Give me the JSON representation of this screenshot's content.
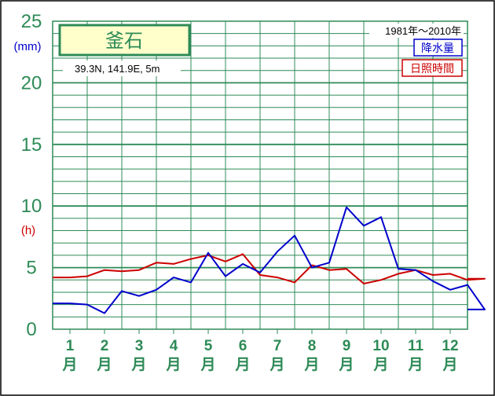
{
  "station": {
    "name": "釜石",
    "coords": "39.3N,  141.9E,  5m",
    "period": "1981年～2010年"
  },
  "legend": {
    "precip_label": "降水量",
    "sunshine_label": "日照時間"
  },
  "axes": {
    "y_unit_top": "(mm)",
    "y_unit_mid": "(h)",
    "y_ticks": [
      "25",
      "20",
      "15",
      "10",
      "5",
      "0"
    ],
    "month_numbers": [
      "1",
      "2",
      "3",
      "4",
      "5",
      "6",
      "7",
      "8",
      "9",
      "10",
      "11",
      "12"
    ],
    "month_suffix": "月"
  },
  "colors": {
    "grid": "#2e8b57",
    "precip": "#0000cc",
    "sunshine": "#cc0000",
    "title_box_bg": "#ffffcc",
    "tick_text": "#2e8b57"
  },
  "chart_data": {
    "type": "line",
    "x_unit": "month",
    "ylim": [
      0,
      25
    ],
    "grid": true,
    "legend_position": "top-right",
    "series": [
      {
        "name": "降水量",
        "x": [
          0.5,
          1.0,
          1.5,
          2.0,
          2.5,
          3.0,
          3.5,
          4.0,
          4.5,
          5.0,
          5.5,
          6.0,
          6.5,
          7.0,
          7.5,
          8.0,
          8.5,
          9.0,
          9.5,
          10.0,
          10.5,
          11.0,
          11.5,
          12.0,
          12.5
        ],
        "values": [
          2.1,
          2.0,
          1.3,
          3.1,
          2.7,
          3.2,
          4.2,
          3.8,
          6.2,
          4.3,
          5.3,
          4.6,
          6.3,
          7.6,
          5.0,
          5.4,
          9.9,
          8.4,
          9.1,
          4.9,
          4.8,
          3.9,
          3.2,
          3.6,
          1.6
        ]
      },
      {
        "name": "日照時間",
        "x": [
          0.5,
          1.0,
          1.5,
          2.0,
          2.5,
          3.0,
          3.5,
          4.0,
          4.5,
          5.0,
          5.5,
          6.0,
          6.5,
          7.0,
          7.5,
          8.0,
          8.5,
          9.0,
          9.5,
          10.0,
          10.5,
          11.0,
          11.5,
          12.0,
          12.5
        ],
        "values": [
          4.2,
          4.3,
          4.8,
          4.7,
          4.8,
          5.4,
          5.3,
          5.7,
          6.0,
          5.5,
          6.1,
          4.4,
          4.2,
          3.8,
          5.2,
          4.8,
          4.9,
          3.7,
          4.0,
          4.5,
          4.8,
          4.4,
          4.5,
          4.0,
          4.1
        ]
      }
    ]
  }
}
